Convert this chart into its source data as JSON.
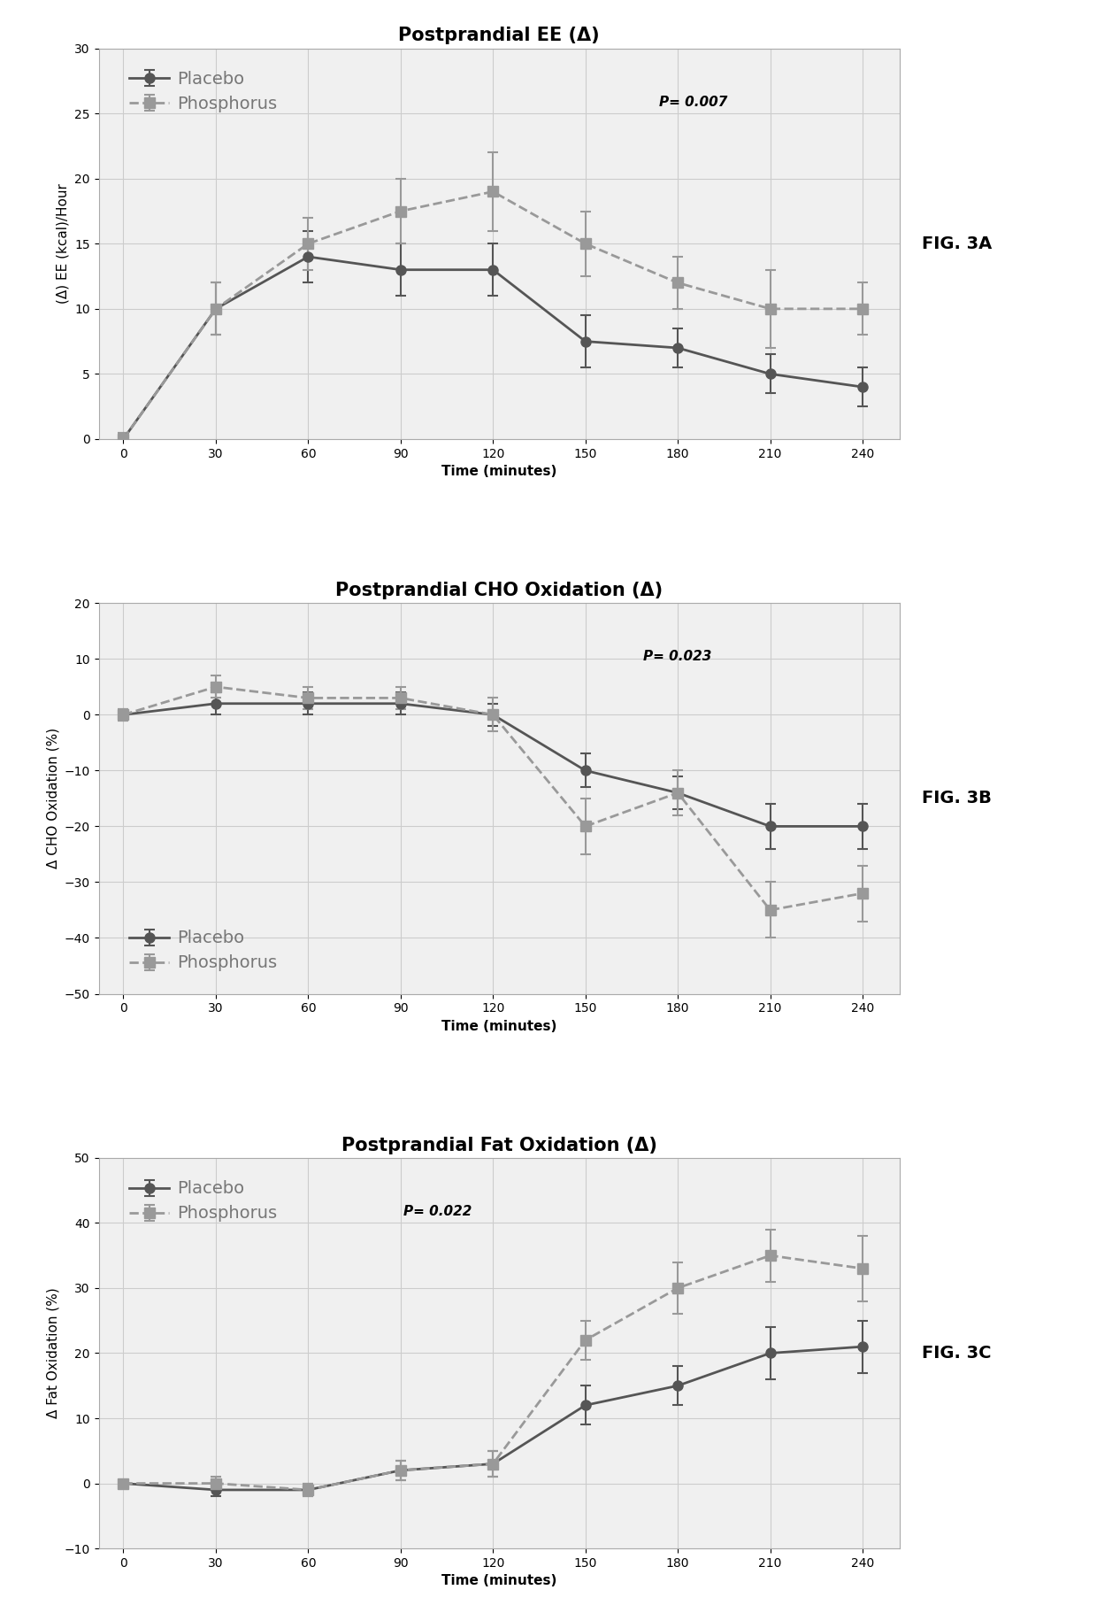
{
  "time": [
    0,
    30,
    60,
    90,
    120,
    150,
    180,
    210,
    240
  ],
  "fig3a_title": "Postprandial EE (Δ)",
  "fig3a_ylabel": "(Δ) EE (kcal)/Hour",
  "fig3a_xlabel": "Time (minutes)",
  "fig3a_ylim": [
    0,
    30
  ],
  "fig3a_yticks": [
    0,
    5,
    10,
    15,
    20,
    25,
    30
  ],
  "fig3a_pvalue": "P= 0.007",
  "fig3a_placebo_y": [
    0,
    10,
    14,
    13,
    13,
    7.5,
    7,
    5,
    4
  ],
  "fig3a_phosphorus_y": [
    0,
    10,
    15,
    17.5,
    19,
    15,
    12,
    10,
    10
  ],
  "fig3a_placebo_err": [
    0.5,
    2,
    2,
    2,
    2,
    2,
    1.5,
    1.5,
    1.5
  ],
  "fig3a_phosphorus_err": [
    0.5,
    2,
    2,
    2.5,
    3,
    2.5,
    2,
    3,
    2
  ],
  "fig3b_title": "Postprandial CHO Oxidation (Δ)",
  "fig3b_ylabel": "Δ CHO Oxidation (%)",
  "fig3b_xlabel": "Time (minutes)",
  "fig3b_ylim": [
    -50,
    20
  ],
  "fig3b_yticks": [
    -50,
    -40,
    -30,
    -20,
    -10,
    0,
    10,
    20
  ],
  "fig3b_pvalue": "P= 0.023",
  "fig3b_placebo_y": [
    0,
    2,
    2,
    2,
    0,
    -10,
    -14,
    -20,
    -20
  ],
  "fig3b_phosphorus_y": [
    0,
    5,
    3,
    3,
    0,
    -20,
    -14,
    -35,
    -32
  ],
  "fig3b_placebo_err": [
    1,
    2,
    2,
    2,
    2,
    3,
    3,
    4,
    4
  ],
  "fig3b_phosphorus_err": [
    1,
    2,
    2,
    2,
    3,
    5,
    4,
    5,
    5
  ],
  "fig3c_title": "Postprandial Fat Oxidation (Δ)",
  "fig3c_ylabel": "Δ Fat Oxidation (%)",
  "fig3c_xlabel": "Time (minutes)",
  "fig3c_ylim": [
    -10,
    50
  ],
  "fig3c_yticks": [
    -10,
    0,
    10,
    20,
    30,
    40,
    50
  ],
  "fig3c_pvalue": "P= 0.022",
  "fig3c_placebo_y": [
    0,
    -1,
    -1,
    2,
    3,
    12,
    15,
    20,
    21
  ],
  "fig3c_phosphorus_y": [
    0,
    0,
    -1,
    2,
    3,
    22,
    30,
    35,
    33
  ],
  "fig3c_placebo_err": [
    0.5,
    1,
    1,
    1.5,
    2,
    3,
    3,
    4,
    4
  ],
  "fig3c_phosphorus_err": [
    0.5,
    1,
    1,
    1.5,
    2,
    3,
    4,
    4,
    5
  ],
  "placebo_color": "#555555",
  "phosphorus_color": "#999999",
  "grid_color": "#cccccc",
  "background_color": "#f0f0f0",
  "fig_labels": [
    "FIG. 3A",
    "FIG. 3B",
    "FIG. 3C"
  ]
}
